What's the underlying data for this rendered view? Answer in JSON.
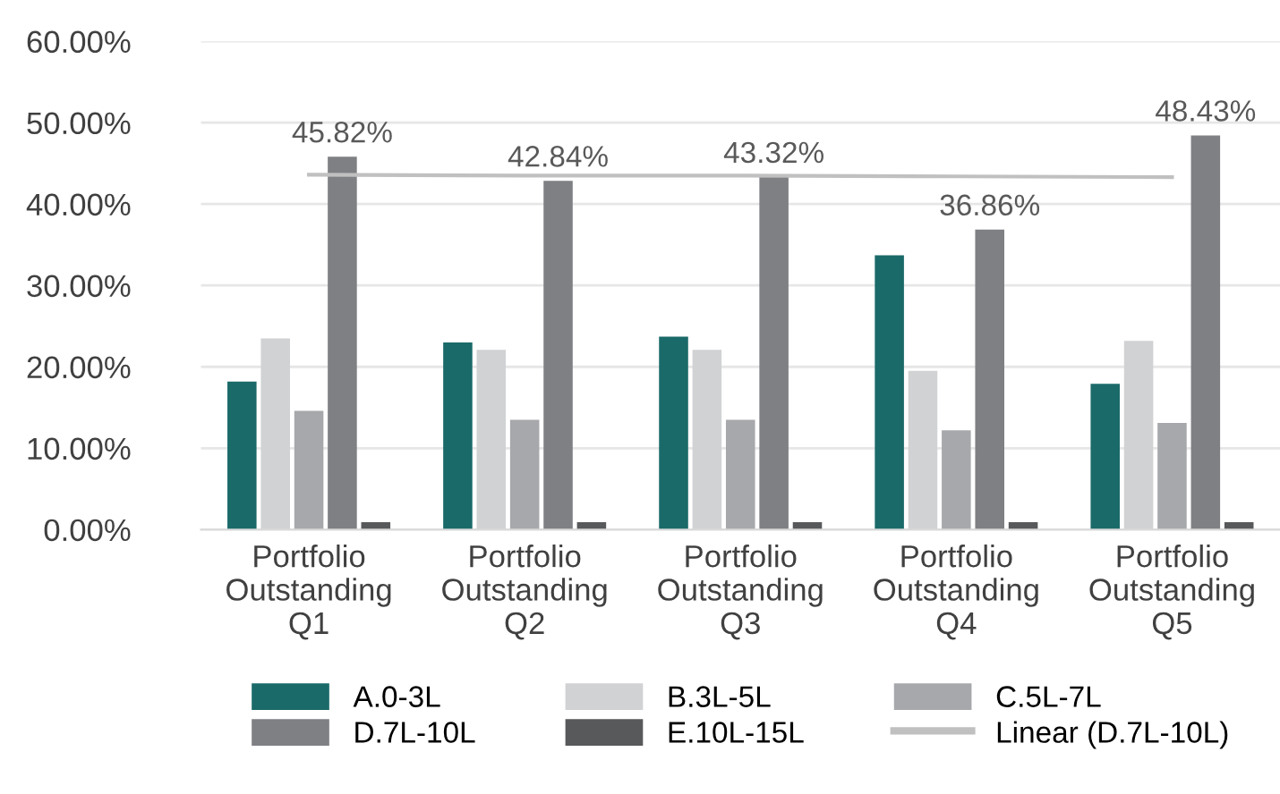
{
  "chart_data": {
    "type": "bar",
    "categories": [
      "Portfolio\nOutstanding\nQ1",
      "Portfolio\nOutstanding\nQ2",
      "Portfolio\nOutstanding\nQ3",
      "Portfolio\nOutstanding\nQ4",
      "Portfolio\nOutstanding\nQ5"
    ],
    "series": [
      {
        "name": "A.0-3L",
        "color": "#1a6a69",
        "values": [
          18.2,
          23.0,
          23.7,
          33.7,
          17.9
        ]
      },
      {
        "name": "B.3L-5L",
        "color": "#d1d2d4",
        "values": [
          23.5,
          22.1,
          22.1,
          19.5,
          23.2
        ]
      },
      {
        "name": "C.5L-7L",
        "color": "#a7a8ab",
        "values": [
          14.6,
          13.5,
          13.5,
          12.2,
          13.1
        ]
      },
      {
        "name": "D.7L-10L",
        "color": "#7f8084",
        "values": [
          45.82,
          42.84,
          43.32,
          36.86,
          48.43
        ],
        "value_labels": [
          "45.82%",
          "42.84%",
          "43.32%",
          "36.86%",
          "48.43%"
        ]
      },
      {
        "name": "E.10L-15L",
        "color": "#58595b",
        "values": [
          0.9,
          0.9,
          0.9,
          0.9,
          0.9
        ]
      },
      {
        "name": "Linear (D.7L-10L)",
        "type": "line",
        "color": "#c0c0c0",
        "values": [
          43.6,
          43.5,
          43.5,
          43.4,
          43.3
        ]
      }
    ],
    "ylim": [
      0,
      60
    ],
    "yticks": [
      {
        "value": 0,
        "label": "0.00%"
      },
      {
        "value": 10,
        "label": "10.00%"
      },
      {
        "value": 20,
        "label": "20.00%"
      },
      {
        "value": 30,
        "label": "30.00%"
      },
      {
        "value": 40,
        "label": "40.00%"
      },
      {
        "value": 50,
        "label": "50.00%"
      },
      {
        "value": 60,
        "label": "60.00%"
      }
    ],
    "grid": "y",
    "legend": "bottom",
    "line_style": "solid",
    "marker": "none"
  }
}
